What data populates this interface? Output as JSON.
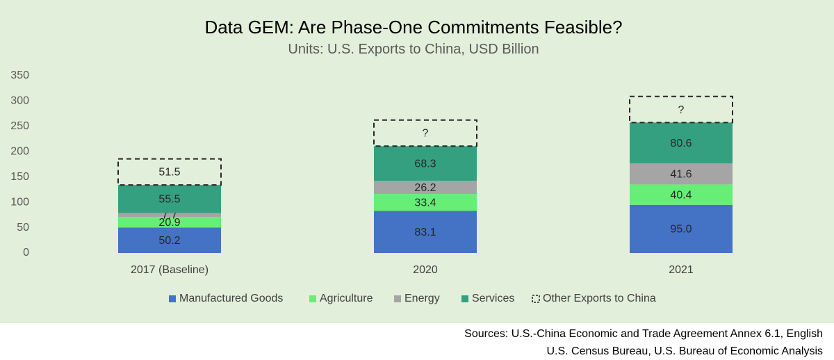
{
  "chart_data": {
    "type": "bar",
    "stacked": true,
    "title": "Data GEM: Are Phase-One Commitments Feasible?",
    "subtitle": "Units: U.S. Exports to China, USD Billion",
    "categories": [
      "2017 (Baseline)",
      "2020",
      "2021"
    ],
    "series": [
      {
        "name": "Manufactured Goods",
        "color": "#4472c4",
        "values": [
          50.2,
          83.1,
          95.0
        ],
        "labels": [
          "50.2",
          "83.1",
          "95.0"
        ]
      },
      {
        "name": "Agriculture",
        "color": "#66ee77",
        "values": [
          20.9,
          33.4,
          40.4
        ],
        "labels": [
          "20.9",
          "33.4",
          "40.4"
        ]
      },
      {
        "name": "Energy",
        "color": "#a5a5a5",
        "values": [
          7.7,
          26.2,
          41.6
        ],
        "labels": [
          "7.7",
          "26.2",
          "41.6"
        ]
      },
      {
        "name": "Services",
        "color": "#35a07f",
        "values": [
          55.5,
          68.3,
          80.6
        ],
        "labels": [
          "55.5",
          "68.3",
          "80.6"
        ]
      },
      {
        "name": "Other Exports to China",
        "color": "none",
        "dashed": true,
        "values": [
          51.5,
          51.5,
          51.5
        ],
        "labels": [
          "51.5",
          "?",
          "?"
        ]
      }
    ],
    "yticks": [
      "0",
      "50",
      "100",
      "150",
      "200",
      "250",
      "300",
      "350"
    ],
    "ylim": [
      0,
      350
    ],
    "grid": false,
    "legend_position": "bottom",
    "background_color": "#e2efda"
  },
  "sources": {
    "line1": "Sources: U.S.-China Economic and Trade Agreement Annex 6.1, English",
    "line2": "U.S. Census Bureau, U.S. Bureau of Economic Analysis"
  }
}
